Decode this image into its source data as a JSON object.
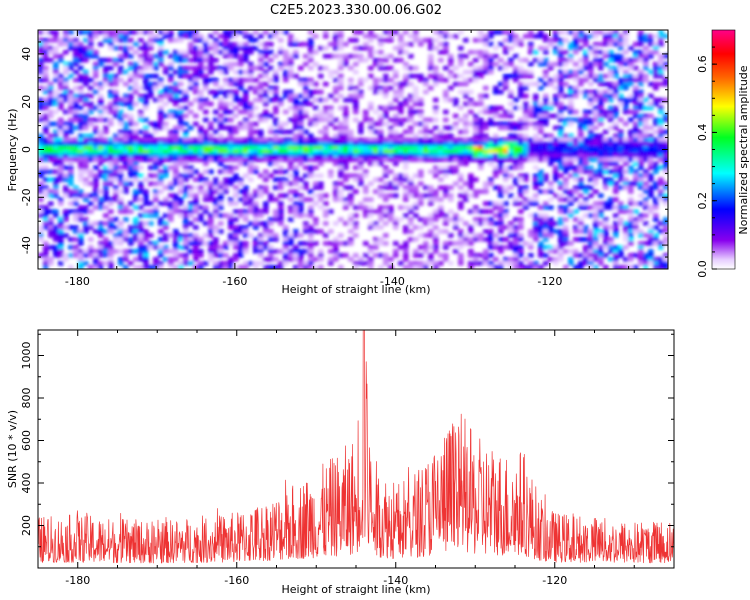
{
  "figure": {
    "title": "C2E5.2023.330.00.06.G02"
  },
  "colorbar": {
    "label": "Normalized spectral amplitude",
    "ticks": [
      0.0,
      0.2,
      0.4,
      0.6
    ],
    "tick_labels": [
      "0.0",
      "0.2",
      "0.4",
      "0.6"
    ],
    "range": [
      0,
      0.7
    ],
    "colormap": "gist_rainbow (white at zero, violet → blue → cyan → green → yellow → orange → red → magenta)"
  },
  "chart_data": [
    {
      "type": "heatmap",
      "xlabel": "Height of straight line (km)",
      "ylabel": "Frequency (Hz)",
      "xlim": [
        -185,
        -105
      ],
      "ylim": [
        -50,
        50
      ],
      "xticks": [
        -180,
        -160,
        -140,
        -120
      ],
      "yticks": [
        -40,
        -20,
        0,
        20,
        40
      ],
      "grid": false,
      "band": {
        "center_frequency": 0,
        "x_extent": [
          -185,
          -123
        ],
        "peak_x": [
          -130,
          -124
        ],
        "peak_value": 0.7
      }
    },
    {
      "type": "line",
      "xlabel": "Height of straight line (km)",
      "ylabel": "SNR (10 * v/v)",
      "xlim": [
        -185,
        -105
      ],
      "ylim": [
        0,
        1120
      ],
      "xticks": [
        -180,
        -160,
        -140,
        -120
      ],
      "yticks": [
        200,
        400,
        600,
        800,
        1000
      ],
      "grid": false,
      "series": [
        {
          "color": "#ee3333",
          "x": [
            -185,
            -180,
            -175,
            -170,
            -165,
            -160,
            -155,
            -150,
            -147,
            -145,
            -144,
            -143,
            -140,
            -137,
            -135,
            -133,
            -131,
            -130,
            -128,
            -126,
            -124,
            -122,
            -120,
            -115,
            -110,
            -105
          ],
          "y": [
            230,
            240,
            220,
            210,
            230,
            250,
            330,
            440,
            520,
            600,
            1120,
            500,
            380,
            460,
            560,
            680,
            640,
            590,
            560,
            520,
            540,
            330,
            250,
            230,
            210,
            220
          ]
        }
      ]
    }
  ]
}
